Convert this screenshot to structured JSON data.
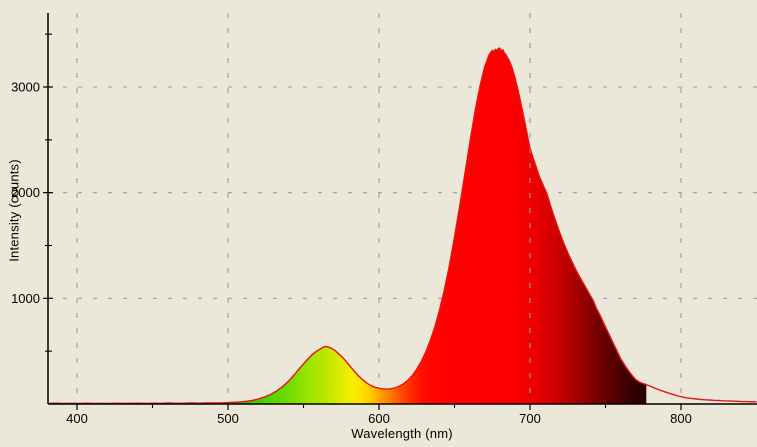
{
  "palette": {
    "background": "#ebe8d9",
    "grid": "#9c9c93",
    "axis": "#000000",
    "curve": "#e81414",
    "text": "#000000"
  },
  "chart_data": {
    "type": "area",
    "title": "",
    "xlabel": "Wavelength (nm)",
    "ylabel": "Intensity (counts)",
    "x_range": [
      381,
      850
    ],
    "y_range": [
      0,
      3700
    ],
    "x_major_ticks": [
      400,
      500,
      600,
      700,
      800
    ],
    "x_minor_ticks": [
      450,
      550,
      650,
      750
    ],
    "y_major_ticks": [
      1000,
      2000,
      3000
    ],
    "y_minor_ticks": [
      500,
      1500,
      2500,
      3500
    ],
    "grid": "dashed-gray-at-major-ticks",
    "legend": "none",
    "fill_style": "spectral gradient colored by wavelength",
    "fill_end_nm": 777,
    "cursor_line_nm": 700,
    "peaks": [
      {
        "wavelength_nm": 564,
        "counts": 545
      },
      {
        "wavelength_nm": 680,
        "counts": 3368
      }
    ],
    "spectral_stops": [
      [
        381,
        "#1faa00"
      ],
      [
        500,
        "#2bb400"
      ],
      [
        520,
        "#3ecf00"
      ],
      [
        535,
        "#62d800"
      ],
      [
        545,
        "#7fdf00"
      ],
      [
        552,
        "#97e300"
      ],
      [
        558,
        "#a9e600"
      ],
      [
        564,
        "#b8e700"
      ],
      [
        570,
        "#cdea00"
      ],
      [
        576,
        "#e3ec00"
      ],
      [
        582,
        "#f3ee00"
      ],
      [
        588,
        "#fce300"
      ],
      [
        593,
        "#ffd200"
      ],
      [
        598,
        "#ffb400"
      ],
      [
        604,
        "#ff9000"
      ],
      [
        610,
        "#ff6a00"
      ],
      [
        616,
        "#ff4600"
      ],
      [
        622,
        "#ff2600"
      ],
      [
        628,
        "#ff1000"
      ],
      [
        635,
        "#fd0400"
      ],
      [
        645,
        "#ff0000"
      ],
      [
        690,
        "#fa0000"
      ],
      [
        700,
        "#ef0000"
      ],
      [
        708,
        "#e00000"
      ],
      [
        716,
        "#cf0000"
      ],
      [
        724,
        "#b90000"
      ],
      [
        732,
        "#a00000"
      ],
      [
        740,
        "#860000"
      ],
      [
        748,
        "#6c0000"
      ],
      [
        756,
        "#540000"
      ],
      [
        764,
        "#3f0000"
      ],
      [
        771,
        "#300000"
      ],
      [
        777,
        "#280000"
      ]
    ],
    "series": [
      [
        381,
        6
      ],
      [
        386,
        8
      ],
      [
        391,
        5
      ],
      [
        396,
        7
      ],
      [
        401,
        6
      ],
      [
        406,
        8
      ],
      [
        411,
        6
      ],
      [
        416,
        7
      ],
      [
        421,
        6
      ],
      [
        426,
        8
      ],
      [
        431,
        6
      ],
      [
        436,
        7
      ],
      [
        441,
        8
      ],
      [
        446,
        6
      ],
      [
        451,
        8
      ],
      [
        456,
        7
      ],
      [
        461,
        9
      ],
      [
        466,
        7
      ],
      [
        471,
        8
      ],
      [
        476,
        9
      ],
      [
        481,
        8
      ],
      [
        486,
        10
      ],
      [
        491,
        9
      ],
      [
        496,
        11
      ],
      [
        500,
        13
      ],
      [
        504,
        16
      ],
      [
        508,
        20
      ],
      [
        512,
        26
      ],
      [
        516,
        34
      ],
      [
        520,
        47
      ],
      [
        524,
        65
      ],
      [
        528,
        89
      ],
      [
        532,
        121
      ],
      [
        536,
        163
      ],
      [
        540,
        215
      ],
      [
        544,
        278
      ],
      [
        548,
        347
      ],
      [
        552,
        412
      ],
      [
        556,
        470
      ],
      [
        559,
        503
      ],
      [
        561,
        520
      ],
      [
        563,
        537
      ],
      [
        565,
        545
      ],
      [
        567,
        536
      ],
      [
        569,
        523
      ],
      [
        571,
        504
      ],
      [
        574,
        466
      ],
      [
        577,
        423
      ],
      [
        580,
        372
      ],
      [
        583,
        321
      ],
      [
        586,
        273
      ],
      [
        589,
        231
      ],
      [
        592,
        197
      ],
      [
        595,
        172
      ],
      [
        598,
        155
      ],
      [
        601,
        146
      ],
      [
        604,
        141
      ],
      [
        607,
        143
      ],
      [
        610,
        150
      ],
      [
        613,
        166
      ],
      [
        616,
        189
      ],
      [
        619,
        223
      ],
      [
        622,
        269
      ],
      [
        625,
        329
      ],
      [
        628,
        403
      ],
      [
        631,
        493
      ],
      [
        634,
        601
      ],
      [
        637,
        731
      ],
      [
        640,
        885
      ],
      [
        643,
        1061
      ],
      [
        646,
        1266
      ],
      [
        649,
        1496
      ],
      [
        652,
        1748
      ],
      [
        655,
        2012
      ],
      [
        658,
        2282
      ],
      [
        661,
        2548
      ],
      [
        664,
        2798
      ],
      [
        667,
        3018
      ],
      [
        670,
        3192
      ],
      [
        673,
        3308
      ],
      [
        675,
        3347
      ],
      [
        676,
        3332
      ],
      [
        677,
        3356
      ],
      [
        678,
        3346
      ],
      [
        679,
        3363
      ],
      [
        680,
        3368
      ],
      [
        681,
        3341
      ],
      [
        682,
        3353
      ],
      [
        683,
        3323
      ],
      [
        684,
        3306
      ],
      [
        686,
        3256
      ],
      [
        688,
        3186
      ],
      [
        690,
        3092
      ],
      [
        692,
        2976
      ],
      [
        694,
        2846
      ],
      [
        696,
        2706
      ],
      [
        698,
        2561
      ],
      [
        700,
        2420
      ],
      [
        703,
        2290
      ],
      [
        706,
        2160
      ],
      [
        709,
        2060
      ],
      [
        711,
        2000
      ],
      [
        714,
        1860
      ],
      [
        717,
        1730
      ],
      [
        720,
        1610
      ],
      [
        723,
        1500
      ],
      [
        726,
        1400
      ],
      [
        729,
        1310
      ],
      [
        732,
        1225
      ],
      [
        735,
        1150
      ],
      [
        738,
        1075
      ],
      [
        740,
        1025
      ],
      [
        742,
        975
      ],
      [
        744,
        905
      ],
      [
        746,
        850
      ],
      [
        748,
        790
      ],
      [
        750,
        730
      ],
      [
        752,
        670
      ],
      [
        754,
        610
      ],
      [
        756,
        550
      ],
      [
        758,
        490
      ],
      [
        760,
        430
      ],
      [
        762,
        385
      ],
      [
        764,
        340
      ],
      [
        766,
        300
      ],
      [
        768,
        263
      ],
      [
        770,
        232
      ],
      [
        772,
        212
      ],
      [
        774,
        198
      ],
      [
        776,
        188
      ],
      [
        777,
        184
      ],
      [
        780,
        167
      ],
      [
        783,
        149
      ],
      [
        786,
        132
      ],
      [
        789,
        116
      ],
      [
        792,
        102
      ],
      [
        795,
        89
      ],
      [
        798,
        76
      ],
      [
        801,
        65
      ],
      [
        804,
        58
      ],
      [
        807,
        53
      ],
      [
        810,
        47
      ],
      [
        813,
        44
      ],
      [
        816,
        40
      ],
      [
        819,
        38
      ],
      [
        822,
        35
      ],
      [
        825,
        33
      ],
      [
        828,
        30
      ],
      [
        831,
        29
      ],
      [
        834,
        27
      ],
      [
        837,
        26
      ],
      [
        840,
        24
      ],
      [
        843,
        23
      ],
      [
        846,
        21
      ],
      [
        849,
        22
      ],
      [
        850,
        20
      ]
    ]
  }
}
